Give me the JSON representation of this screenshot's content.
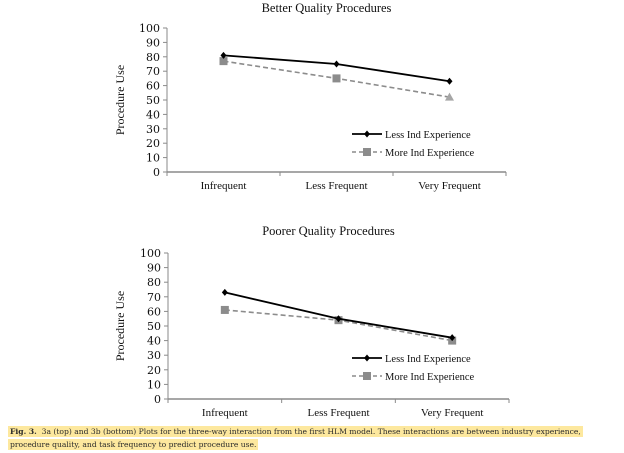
{
  "chart_data": [
    {
      "type": "line",
      "title": "Better Quality Procedures",
      "xlabel": "",
      "ylabel": "Procedure Use",
      "categories": [
        "Infrequent",
        "Less Frequent",
        "Very Frequent"
      ],
      "ylim": [
        0,
        100
      ],
      "yticks": [
        0,
        10,
        20,
        30,
        40,
        50,
        60,
        70,
        80,
        90,
        100
      ],
      "grid": false,
      "legend_position": "center-right",
      "series": [
        {
          "name": "Less Ind Experience",
          "style": "solid",
          "marker": "diamond",
          "color": "#000000",
          "values": [
            81,
            75,
            63
          ],
          "markers": [
            "diamond",
            "diamond",
            "diamond"
          ]
        },
        {
          "name": "More Ind Experience",
          "style": "dashed",
          "marker": "square",
          "color": "#8c8c8c",
          "values": [
            77,
            65,
            52
          ],
          "markers": [
            "square",
            "square",
            "triangle"
          ]
        }
      ]
    },
    {
      "type": "line",
      "title": "Poorer Quality Procedures",
      "xlabel": "",
      "ylabel": "Procedure Use",
      "categories": [
        "Infrequent",
        "Less Frequent",
        "Very Frequent"
      ],
      "ylim": [
        0,
        100
      ],
      "yticks": [
        0,
        10,
        20,
        30,
        40,
        50,
        60,
        70,
        80,
        90,
        100
      ],
      "grid": false,
      "legend_position": "center-right",
      "series": [
        {
          "name": "Less Ind Experience",
          "style": "solid",
          "marker": "diamond",
          "color": "#000000",
          "values": [
            73,
            55,
            42
          ],
          "markers": [
            "diamond",
            "diamond",
            "diamond"
          ]
        },
        {
          "name": "More Ind Experience",
          "style": "dashed",
          "marker": "square",
          "color": "#8c8c8c",
          "values": [
            61,
            54,
            40
          ],
          "markers": [
            "square",
            "square",
            "square"
          ]
        }
      ]
    }
  ],
  "caption": {
    "label": "Fig. 3.",
    "text": "3a (top) and 3b (bottom) Plots for the three-way interaction from the first HLM model. These interactions are between industry experience, procedure quality, and task frequency to predict procedure use.",
    "highlight_color": "#fde89e"
  }
}
